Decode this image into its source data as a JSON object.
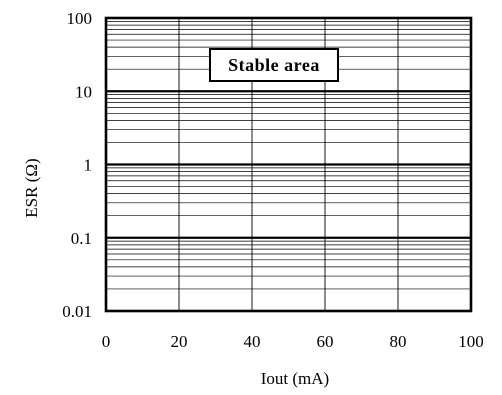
{
  "chart_data": {
    "type": "area",
    "title": "",
    "xlabel": "Iout (mA)",
    "ylabel": "ESR (Ω)",
    "xlim": [
      0,
      100
    ],
    "ylim": [
      0.01,
      100
    ],
    "yscale": "log",
    "grid": true,
    "x_ticks": [
      "0",
      "20",
      "40",
      "60",
      "80",
      "100"
    ],
    "y_ticks": [
      "0.01",
      "0.1",
      "1",
      "10",
      "100"
    ],
    "annotations": [
      "Stable area"
    ],
    "stable_region": {
      "x": [
        0,
        100
      ],
      "y": [
        0.01,
        100
      ]
    }
  }
}
